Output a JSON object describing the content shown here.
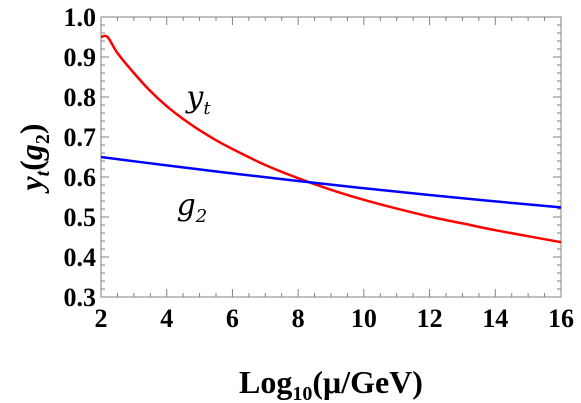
{
  "chart_data": {
    "type": "line",
    "xlabel": {
      "base": "Log",
      "sub": "10",
      "rest": "(μ/GeV)"
    },
    "ylabel": {
      "main": "y",
      "sub": "t",
      "open": "(",
      "g": "g",
      "gsub": "2",
      "close": ")"
    },
    "xlim": [
      2,
      16
    ],
    "ylim": [
      0.3,
      1.0
    ],
    "xticks": [
      2,
      4,
      6,
      8,
      10,
      12,
      14,
      16
    ],
    "yticks": [
      0.3,
      0.4,
      0.5,
      0.6,
      0.7,
      0.8,
      0.9,
      1.0
    ],
    "xtick_labels": [
      "2",
      "4",
      "6",
      "8",
      "10",
      "12",
      "14",
      "16"
    ],
    "ytick_labels": [
      "0.3",
      "0.4",
      "0.5",
      "0.6",
      "0.7",
      "0.8",
      "0.9",
      "1.0"
    ],
    "grid": false,
    "series": [
      {
        "name": "y_t",
        "color": "#ff0000",
        "x": [
          2.0,
          2.2,
          2.5,
          3.0,
          3.5,
          4.0,
          4.5,
          5.0,
          5.5,
          6.0,
          7.0,
          8.0,
          9.0,
          10.0,
          11.0,
          12.0,
          13.0,
          14.0,
          15.0,
          16.0
        ],
        "y": [
          0.95,
          0.95,
          0.91,
          0.86,
          0.815,
          0.777,
          0.745,
          0.717,
          0.692,
          0.67,
          0.63,
          0.597,
          0.568,
          0.543,
          0.521,
          0.501,
          0.484,
          0.467,
          0.452,
          0.437
        ]
      },
      {
        "name": "g_2",
        "color": "#0000ff",
        "x": [
          2.0,
          4.0,
          6.0,
          8.0,
          10.0,
          12.0,
          14.0,
          16.0
        ],
        "y": [
          0.65,
          0.629,
          0.609,
          0.59,
          0.572,
          0.555,
          0.539,
          0.524
        ]
      }
    ],
    "annotations": [
      {
        "id": "yt-label",
        "main": "y",
        "sub": "t",
        "x": 4.6,
        "y": 0.8
      },
      {
        "id": "g2-label",
        "main": "g",
        "sub": "2",
        "x": 4.3,
        "y": 0.53
      }
    ]
  }
}
